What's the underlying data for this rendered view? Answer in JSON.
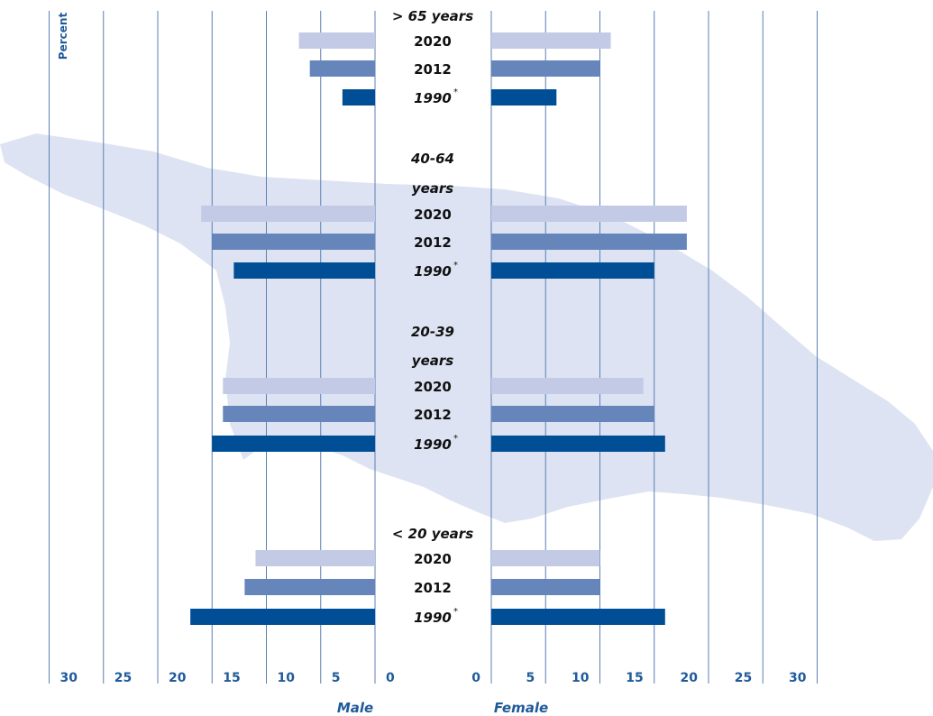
{
  "chart_data": {
    "type": "bar",
    "subtype": "population-pyramid",
    "ylabel": "Percent",
    "xlabel_left": "Male",
    "xlabel_right": "Female",
    "x_ticks": [
      "30",
      "25",
      "20",
      "15",
      "10",
      "5",
      "0"
    ],
    "xlim": [
      0,
      30
    ],
    "year_labels": [
      "2020",
      "2012",
      "1990"
    ],
    "year_footnote_mark": "*",
    "colors": {
      "2020": "#c2cae5",
      "2012": "#6585bb",
      "1990": "#004f96",
      "grid": "#5b7fb3",
      "text_blue": "#1f5a9a",
      "map": "#dde3f2"
    },
    "groups": [
      {
        "label_lines": [
          "> 65 years"
        ],
        "series": [
          {
            "year": "2020",
            "male": 7.0,
            "female": 11.0
          },
          {
            "year": "2012",
            "male": 6.0,
            "female": 10.0
          },
          {
            "year": "1990",
            "male": 3.0,
            "female": 6.0
          }
        ]
      },
      {
        "label_lines": [
          "40-64",
          "years"
        ],
        "series": [
          {
            "year": "2020",
            "male": 16.0,
            "female": 18.0
          },
          {
            "year": "2012",
            "male": 15.0,
            "female": 18.0
          },
          {
            "year": "1990",
            "male": 13.0,
            "female": 15.0
          }
        ]
      },
      {
        "label_lines": [
          "20-39",
          "years"
        ],
        "series": [
          {
            "year": "2020",
            "male": 14.0,
            "female": 14.0
          },
          {
            "year": "2012",
            "male": 14.0,
            "female": 15.0
          },
          {
            "year": "1990",
            "male": 15.0,
            "female": 16.0
          }
        ]
      },
      {
        "label_lines": [
          "< 20 years"
        ],
        "series": [
          {
            "year": "2020",
            "male": 11.0,
            "female": 10.0
          },
          {
            "year": "2012",
            "male": 12.0,
            "female": 10.0
          },
          {
            "year": "1990",
            "male": 17.0,
            "female": 16.0
          }
        ]
      }
    ]
  }
}
